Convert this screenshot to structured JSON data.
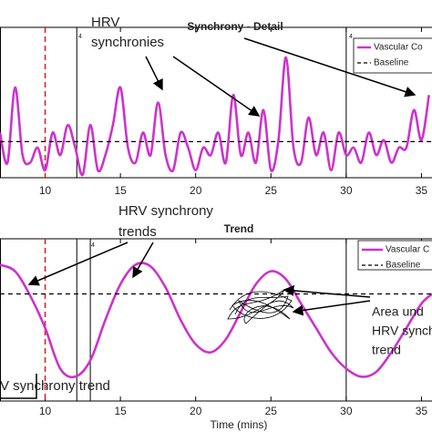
{
  "chart_data": [
    {
      "type": "line",
      "title": "Synchrony - Detail",
      "xlim": [
        7,
        35.7
      ],
      "ylim": [
        0,
        1
      ],
      "xticks": [
        10,
        15,
        20,
        25,
        30,
        35
      ],
      "markers": [
        {
          "x": 10,
          "color": "#d62728",
          "dash": true
        },
        {
          "x": 12.1,
          "color": "#000000",
          "dash": false
        },
        {
          "x": 30,
          "color": "#000000",
          "dash": false
        }
      ],
      "series": [
        {
          "name": "Vascular Co",
          "color": "#cc33cc",
          "dash": false,
          "x": [
            7,
            7.5,
            8,
            8.5,
            9,
            9.5,
            10,
            10.5,
            11,
            11.5,
            12,
            12.5,
            13,
            13.5,
            14,
            14.5,
            15,
            15.5,
            16,
            16.5,
            17,
            17.5,
            18,
            18.5,
            19,
            19.5,
            20,
            20.5,
            21,
            21.5,
            22,
            22.5,
            23,
            23.5,
            24,
            24.5,
            25,
            25.5,
            26,
            26.5,
            27,
            27.5,
            28,
            28.5,
            29,
            29.5,
            30,
            30.5,
            31,
            31.5,
            32,
            32.5,
            33,
            33.5,
            34,
            34.5,
            35,
            35.5
          ],
          "values": [
            0.3,
            0.1,
            0.6,
            0.15,
            0.1,
            0.2,
            0.05,
            0.3,
            0.15,
            0.35,
            0.2,
            0.02,
            0.35,
            0.05,
            0.15,
            0.35,
            0.6,
            0.2,
            0.1,
            0.3,
            0.15,
            0.5,
            0.15,
            0.05,
            0.3,
            0.2,
            0.05,
            0.2,
            0.15,
            0.3,
            0.1,
            0.55,
            0.15,
            0.3,
            0.1,
            0.45,
            0.05,
            0.25,
            0.8,
            0.2,
            0.1,
            0.4,
            0.15,
            0.3,
            0.05,
            0.3,
            0.15,
            0.2,
            0.1,
            0.3,
            0.15,
            0.25,
            0.1,
            0.2,
            0.2,
            0.45,
            0.25,
            0.55
          ]
        },
        {
          "name": "Baseline",
          "color": "#000000",
          "dash": true,
          "x": [
            7,
            35.7
          ],
          "values": [
            0.24,
            0.24
          ]
        }
      ]
    },
    {
      "type": "line",
      "title": "Trend",
      "xlabel": "Time (mins)",
      "xlim": [
        7,
        35.7
      ],
      "ylim": [
        0,
        1
      ],
      "xticks": [
        10,
        15,
        20,
        25,
        30,
        35
      ],
      "markers": [
        {
          "x": 10,
          "color": "#d62728",
          "dash": true
        },
        {
          "x": 12.1,
          "color": "#000000",
          "dash": false
        },
        {
          "x": 13,
          "color": "#000000",
          "dash": false
        },
        {
          "x": 30,
          "color": "#000000",
          "dash": false
        }
      ],
      "series": [
        {
          "name": "Vascular C",
          "color": "#cc33cc",
          "dash": false,
          "x": [
            7,
            8,
            9,
            10,
            11,
            12,
            13,
            14,
            15,
            16,
            17,
            18,
            19,
            20,
            21,
            22,
            23,
            24,
            25,
            26,
            27,
            28,
            29,
            30,
            31,
            32,
            33,
            34,
            35,
            35.7
          ],
          "values": [
            0.84,
            0.8,
            0.65,
            0.45,
            0.2,
            0.15,
            0.25,
            0.5,
            0.72,
            0.84,
            0.83,
            0.7,
            0.5,
            0.35,
            0.3,
            0.38,
            0.55,
            0.72,
            0.8,
            0.75,
            0.6,
            0.45,
            0.3,
            0.2,
            0.15,
            0.18,
            0.3,
            0.45,
            0.6,
            0.66
          ]
        },
        {
          "name": "Baseline",
          "color": "#000000",
          "dash": true,
          "x": [
            7,
            35.7
          ],
          "values": [
            0.66,
            0.66
          ]
        }
      ]
    }
  ],
  "annotations": [
    {
      "lines": [
        "HRV",
        "synchronies"
      ]
    },
    {
      "lines": [
        "HRV synchrony",
        "trends"
      ]
    },
    {
      "lines": [
        "Area und",
        "HRV synch",
        "trend"
      ]
    },
    {
      "lines": [
        "V synchrony trend"
      ]
    },
    {
      "lines": [
        "4"
      ]
    },
    {
      "lines": [
        "4"
      ]
    },
    {
      "lines": [
        "4"
      ]
    }
  ]
}
